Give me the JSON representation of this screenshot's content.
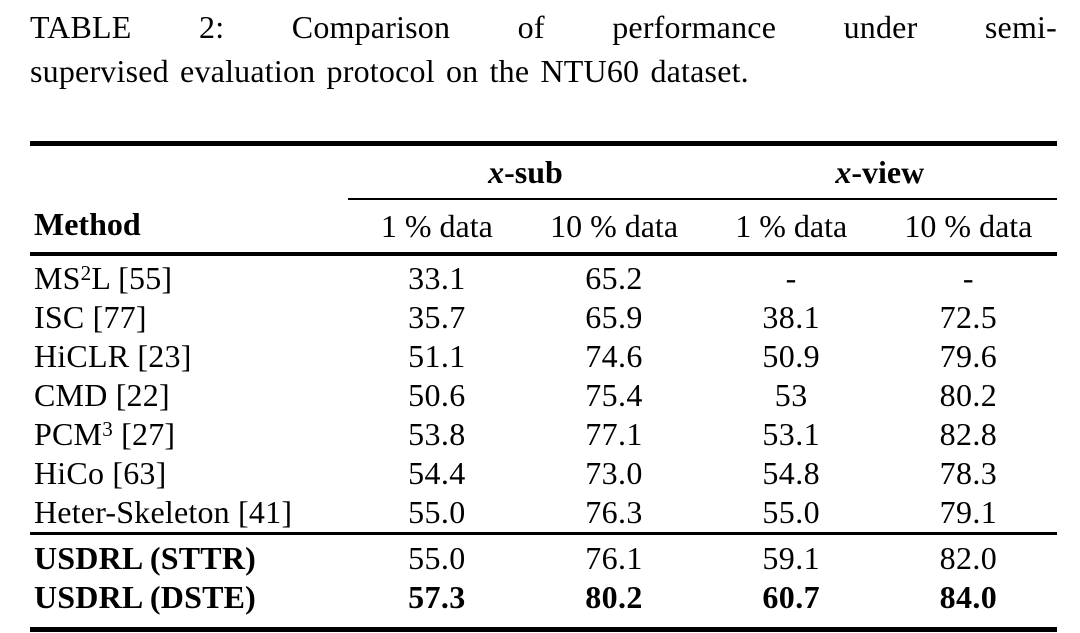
{
  "caption": {
    "line1": "TABLE 2: Comparison of performance under semi-",
    "line2": "supervised evaluation protocol on the NTU60 dataset."
  },
  "table": {
    "method_header": "Method",
    "groups": [
      "x-sub",
      "x-view"
    ],
    "sub_headers": [
      "1 % data",
      "10 % data",
      "1 % data",
      "10 % data"
    ],
    "rows": [
      {
        "method_pre": "MS",
        "method_sup": "2",
        "method_post": "L [55]",
        "values": [
          "33.1",
          "65.2",
          "-",
          "-"
        ]
      },
      {
        "method_pre": "ISC [77]",
        "method_sup": "",
        "method_post": "",
        "values": [
          "35.7",
          "65.9",
          "38.1",
          "72.5"
        ]
      },
      {
        "method_pre": "HiCLR [23]",
        "method_sup": "",
        "method_post": "",
        "values": [
          "51.1",
          "74.6",
          "50.9",
          "79.6"
        ]
      },
      {
        "method_pre": "CMD [22]",
        "method_sup": "",
        "method_post": "",
        "values": [
          "50.6",
          "75.4",
          "53",
          "80.2"
        ]
      },
      {
        "method_pre": "PCM",
        "method_sup": "3",
        "method_post": " [27]",
        "values": [
          "53.8",
          "77.1",
          "53.1",
          "82.8"
        ]
      },
      {
        "method_pre": "HiCo [63]",
        "method_sup": "",
        "method_post": "",
        "values": [
          "54.4",
          "73.0",
          "54.8",
          "78.3"
        ]
      },
      {
        "method_pre": "Heter-Skeleton [41]",
        "method_sup": "",
        "method_post": "",
        "values": [
          "55.0",
          "76.3",
          "55.0",
          "79.1"
        ]
      }
    ],
    "highlight_rows": [
      {
        "method_pre": "USDRL (STTR)",
        "method_sup": "",
        "method_post": "",
        "values": [
          "55.0",
          "76.1",
          "59.1",
          "82.0"
        ]
      },
      {
        "method_pre": "USDRL (DSTE)",
        "method_sup": "",
        "method_post": "",
        "values": [
          "57.3",
          "80.2",
          "60.7",
          "84.0"
        ]
      }
    ],
    "text_color": "#000000",
    "background_color": "#ffffff"
  }
}
